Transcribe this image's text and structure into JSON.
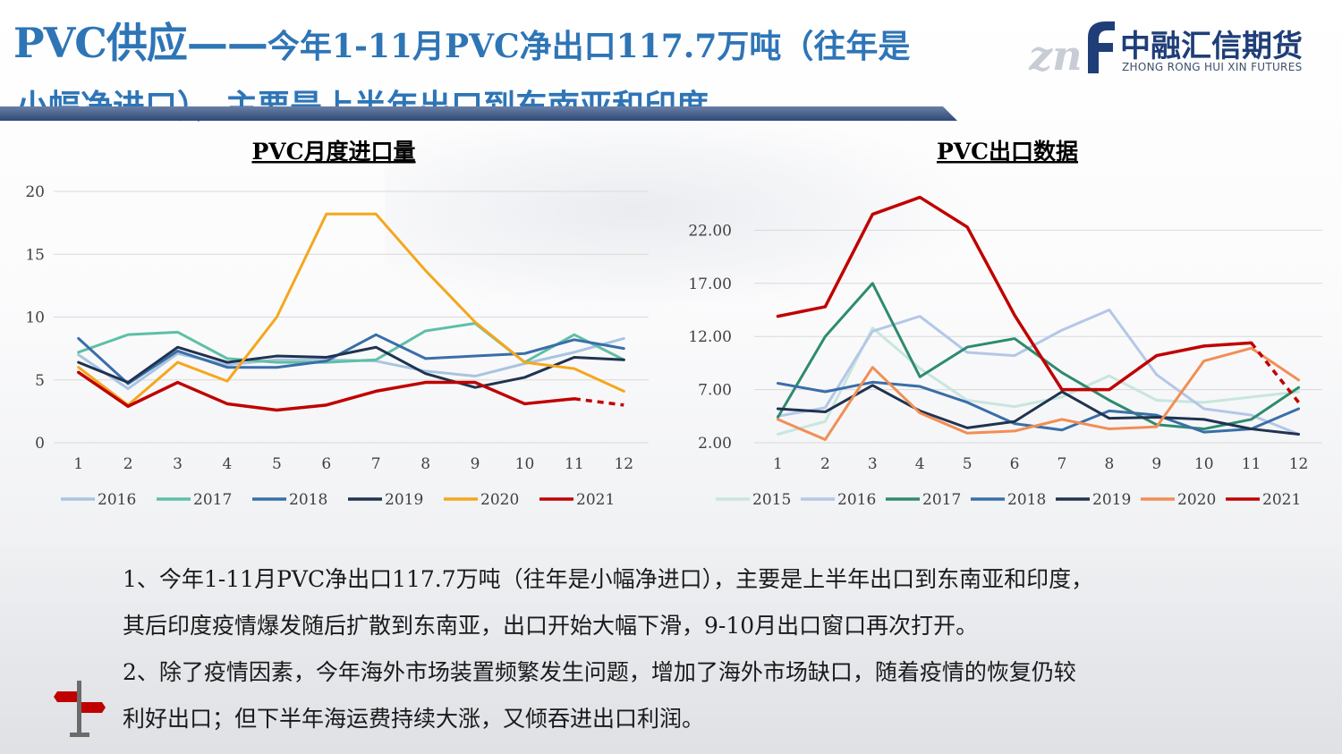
{
  "title": {
    "main": "PVC供应——",
    "sub_line1": "今年1-11月PVC净出口117.7万吨（往年是",
    "sub_line2": "小幅净进口），主要是上半年出口到东南亚和印度"
  },
  "logo": {
    "cn": "中融汇信期货",
    "en": "ZHONG RONG HUI XIN FUTURES",
    "mark": "znf"
  },
  "colors": {
    "title": "#2e75b6",
    "bar": "#2e4a78",
    "logo": "#1f3e78"
  },
  "chart_data": [
    {
      "type": "line",
      "title": "PVC月度进口量",
      "x": [
        1,
        2,
        3,
        4,
        5,
        6,
        7,
        8,
        9,
        10,
        11,
        12
      ],
      "ylim": [
        0,
        20
      ],
      "yticks": [
        "0",
        "5",
        "10",
        "15",
        "20"
      ],
      "grid": true,
      "legend": "bottom",
      "series": [
        {
          "name": "2016",
          "color": "#a9c4e0",
          "values": [
            7.0,
            4.3,
            7.1,
            6.2,
            6.6,
            6.6,
            6.5,
            5.7,
            5.3,
            6.3,
            7.2,
            8.3
          ]
        },
        {
          "name": "2017",
          "color": "#5fbfa6",
          "values": [
            7.2,
            8.6,
            8.8,
            6.7,
            6.4,
            6.4,
            6.6,
            8.9,
            9.5,
            6.4,
            8.6,
            6.6
          ]
        },
        {
          "name": "2018",
          "color": "#3a6ea8",
          "values": [
            8.3,
            4.7,
            7.3,
            6.0,
            6.0,
            6.5,
            8.6,
            6.7,
            6.9,
            7.1,
            8.2,
            7.5
          ]
        },
        {
          "name": "2019",
          "color": "#1f3350",
          "values": [
            6.4,
            4.8,
            7.6,
            6.4,
            6.9,
            6.8,
            7.6,
            5.5,
            4.4,
            5.2,
            6.8,
            6.6
          ]
        },
        {
          "name": "2020",
          "color": "#f4a71d",
          "values": [
            6.0,
            3.0,
            6.4,
            4.9,
            10.0,
            18.2,
            18.2,
            13.7,
            9.6,
            6.4,
            5.9,
            4.1
          ]
        },
        {
          "name": "2021",
          "color": "#c00000",
          "values": [
            5.6,
            2.9,
            4.8,
            3.1,
            2.6,
            3.0,
            4.1,
            4.8,
            4.8,
            3.1,
            3.5,
            3.0
          ],
          "dashed_from_index": 10
        }
      ]
    },
    {
      "type": "line",
      "title": "PVC出口数据",
      "x": [
        1,
        2,
        3,
        4,
        5,
        6,
        7,
        8,
        9,
        10,
        11,
        12
      ],
      "ylim": [
        2,
        27
      ],
      "yticks": [
        "2.00",
        "7.00",
        "12.00",
        "17.00",
        "22.00"
      ],
      "grid": true,
      "legend": "bottom",
      "series": [
        {
          "name": "2015",
          "color": "#c8e6de",
          "values": [
            2.8,
            4.0,
            12.8,
            9.0,
            6.0,
            5.4,
            6.3,
            8.3,
            6.0,
            5.8,
            6.3,
            6.8
          ]
        },
        {
          "name": "2016",
          "color": "#b4c7e7",
          "values": [
            4.5,
            5.3,
            12.5,
            13.9,
            10.5,
            10.2,
            12.6,
            14.5,
            8.4,
            5.2,
            4.6,
            2.8
          ]
        },
        {
          "name": "2017",
          "color": "#2e8b6e",
          "values": [
            4.4,
            12.0,
            17.0,
            8.2,
            11.0,
            11.8,
            8.6,
            6.0,
            3.7,
            3.3,
            4.2,
            7.2
          ]
        },
        {
          "name": "2018",
          "color": "#3a6ea8",
          "values": [
            7.6,
            6.8,
            7.7,
            7.3,
            5.8,
            3.8,
            3.2,
            5.0,
            4.6,
            3.0,
            3.3,
            5.2
          ]
        },
        {
          "name": "2019",
          "color": "#1f3350",
          "values": [
            5.2,
            4.9,
            7.4,
            5.0,
            3.4,
            4.0,
            6.8,
            4.3,
            4.4,
            4.2,
            3.3,
            2.8
          ]
        },
        {
          "name": "2020",
          "color": "#f28e55",
          "values": [
            4.2,
            2.3,
            9.1,
            4.8,
            2.9,
            3.1,
            4.2,
            3.3,
            3.5,
            9.7,
            10.9,
            7.9
          ]
        },
        {
          "name": "2021",
          "color": "#c00000",
          "values": [
            13.9,
            14.8,
            23.5,
            25.1,
            22.3,
            14.0,
            7.0,
            7.0,
            10.2,
            11.1,
            11.4,
            5.8
          ],
          "dashed_from_index": 10
        }
      ]
    }
  ],
  "notes": {
    "p1_line1": "1、今年1-11月PVC净出口117.7万吨（往年是小幅净进口），主要是上半年出口到东南亚和印度，",
    "p1_line2": "其后印度疫情爆发随后扩散到东南亚，出口开始大幅下滑，9-10月出口窗口再次打开。",
    "p2_line1": "2、除了疫情因素，今年海外市场装置频繁发生问题，增加了海外市场缺口，随着疫情的恢复仍较",
    "p2_line2": "利好出口；但下半年海运费持续大涨，又倾吞进出口利润。"
  }
}
